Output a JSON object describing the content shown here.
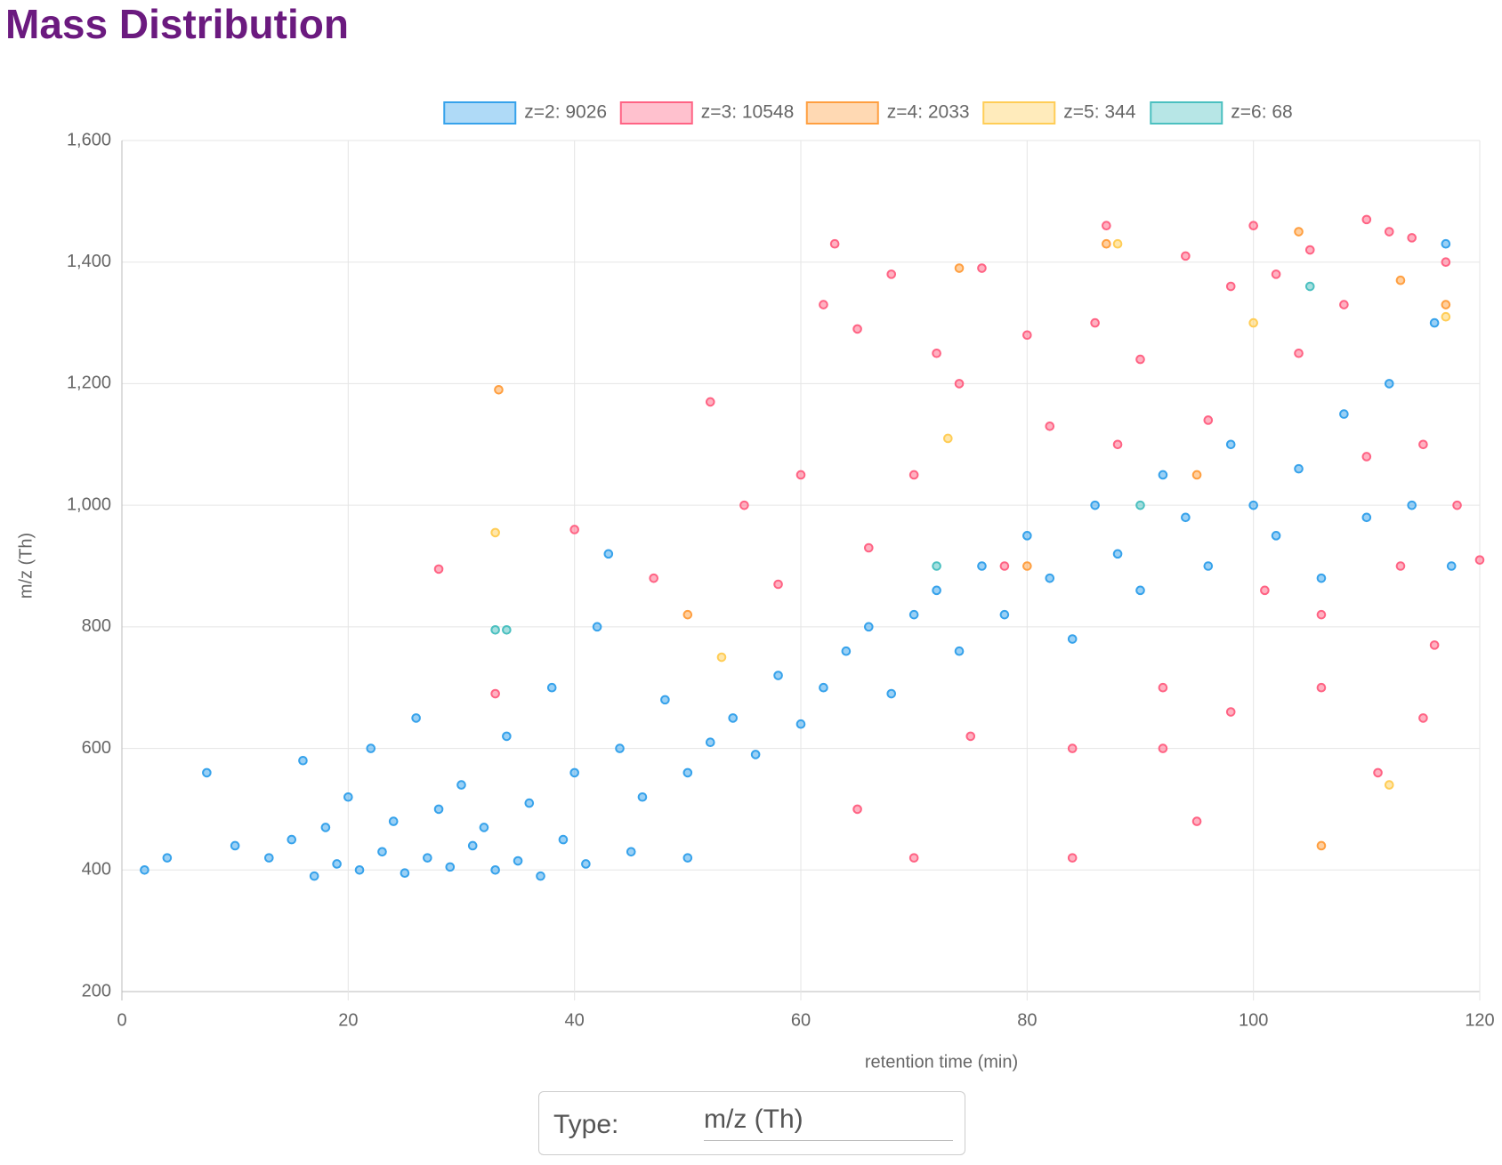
{
  "chart_data": {
    "type": "scatter",
    "title": "Mass Distribution",
    "xlabel": "retention time (min)",
    "ylabel": "m/z (Th)",
    "xlim": [
      0,
      120
    ],
    "xticks": [
      0,
      20,
      40,
      60,
      80,
      100,
      120
    ],
    "ylim": [
      200,
      1600
    ],
    "yticks": [
      200,
      400,
      600,
      800,
      {
        "value": 1000,
        "label": "1,000"
      },
      {
        "value": 1200,
        "label": "1,200"
      },
      {
        "value": 1400,
        "label": "1,400"
      },
      {
        "value": 1600,
        "label": "1,600"
      }
    ],
    "grid": true,
    "legend": "top",
    "series": [
      {
        "name": "z=2: 9026",
        "color": "#36a2eb",
        "x": [
          2,
          4,
          7.5,
          10,
          13,
          15,
          16,
          18,
          20,
          22,
          24,
          26,
          28,
          30,
          32,
          34,
          36,
          38,
          40,
          42,
          44,
          46,
          48,
          50,
          52,
          54,
          56,
          58,
          60,
          62,
          64,
          66,
          68,
          70,
          72,
          74,
          76,
          78,
          80,
          82,
          84,
          86,
          88,
          90,
          92,
          94,
          96,
          98,
          100,
          102,
          104,
          106,
          108,
          110,
          112,
          114,
          116,
          117,
          117.5,
          43,
          17,
          19,
          21,
          23,
          25,
          27,
          29,
          31,
          33,
          35,
          37,
          39,
          41,
          45,
          50
        ],
        "y": [
          400,
          420,
          560,
          440,
          420,
          450,
          580,
          470,
          520,
          600,
          480,
          650,
          500,
          540,
          470,
          620,
          510,
          700,
          560,
          800,
          600,
          520,
          680,
          560,
          610,
          650,
          590,
          720,
          640,
          700,
          760,
          800,
          690,
          820,
          860,
          760,
          900,
          820,
          950,
          880,
          780,
          1000,
          920,
          860,
          1050,
          980,
          900,
          1100,
          1000,
          950,
          1060,
          880,
          1150,
          980,
          1200,
          1000,
          1300,
          1430,
          900,
          920,
          390,
          410,
          400,
          430,
          395,
          420,
          405,
          440,
          400,
          415,
          390,
          450,
          410,
          430,
          420
        ]
      },
      {
        "name": "z=3: 10548",
        "color": "#ff6384",
        "x": [
          28,
          33,
          40,
          47,
          52,
          55,
          58,
          60,
          62,
          63,
          65,
          66,
          68,
          70,
          72,
          74,
          76,
          78,
          80,
          82,
          84,
          86,
          87,
          88,
          90,
          92,
          94,
          96,
          98,
          100,
          101,
          102,
          104,
          105,
          106,
          108,
          110,
          111,
          112,
          113,
          114,
          115,
          116,
          117,
          118,
          120,
          84,
          70,
          98,
          110,
          95,
          75,
          65,
          115,
          106,
          92
        ],
        "y": [
          895,
          690,
          960,
          880,
          1170,
          1000,
          870,
          1050,
          1330,
          1430,
          1290,
          930,
          1380,
          1050,
          1250,
          1200,
          1390,
          900,
          1280,
          1130,
          420,
          1300,
          1460,
          1100,
          1240,
          600,
          1410,
          1140,
          660,
          1460,
          860,
          1380,
          1250,
          1420,
          700,
          1330,
          1470,
          560,
          1450,
          900,
          1440,
          1100,
          770,
          1400,
          1000,
          910,
          600,
          420,
          1360,
          1080,
          480,
          620,
          500,
          650,
          820,
          700
        ]
      },
      {
        "name": "z=4: 2033",
        "color": "#ff9f40",
        "x": [
          33.3,
          74,
          87,
          104,
          113,
          106,
          50,
          80,
          95,
          117
        ],
        "y": [
          1190,
          1390,
          1430,
          1450,
          1370,
          440,
          820,
          900,
          1050,
          1330
        ]
      },
      {
        "name": "z=5: 344",
        "color": "#ffcd56",
        "x": [
          33,
          88,
          73,
          100,
          117,
          53,
          112
        ],
        "y": [
          955,
          1430,
          1110,
          1300,
          1310,
          750,
          540
        ]
      },
      {
        "name": "z=6: 68",
        "color": "#4bc0c0",
        "x": [
          33,
          34,
          105,
          72,
          90
        ],
        "y": [
          795,
          795,
          1360,
          900,
          1000
        ]
      }
    ]
  },
  "controls": {
    "type_label": "Type:",
    "type_value": "m/z (Th)"
  }
}
